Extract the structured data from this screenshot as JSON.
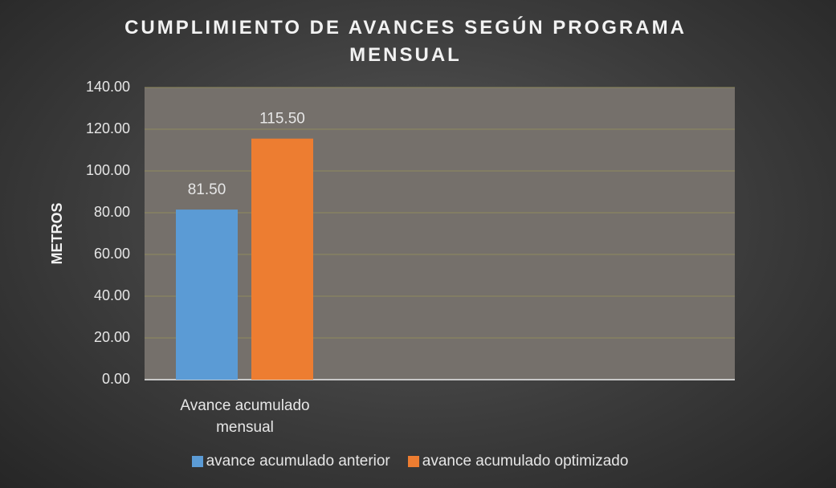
{
  "chart_data": {
    "type": "bar",
    "title": "CUMPLIMIENTO DE AVANCES SEGÚN PROGRAMA MENSUAL",
    "y_label": "METROS",
    "categories": [
      "Avance acumulado mensual",
      null,
      null
    ],
    "series": [
      {
        "name": "avance acumulado anterior",
        "color": "#5b9bd5",
        "values": [
          81.5,
          null,
          null
        ],
        "value_labels": [
          "81.50",
          null,
          null
        ]
      },
      {
        "name": "avance acumulado optimizado",
        "color": "#ed7d31",
        "values": [
          115.5,
          null,
          null
        ],
        "value_labels": [
          "115.50",
          null,
          null
        ]
      }
    ],
    "ylim": [
      0,
      140
    ],
    "yticks": [
      {
        "value": 0,
        "label": "0.00"
      },
      {
        "value": 20,
        "label": "20.00"
      },
      {
        "value": 40,
        "label": "40.00"
      },
      {
        "value": 60,
        "label": "60.00"
      },
      {
        "value": 80,
        "label": "80.00"
      },
      {
        "value": 100,
        "label": "100.00"
      },
      {
        "value": 120,
        "label": "120.00"
      },
      {
        "value": 140,
        "label": "140.00"
      }
    ],
    "grid": true,
    "legend": "bottom"
  }
}
